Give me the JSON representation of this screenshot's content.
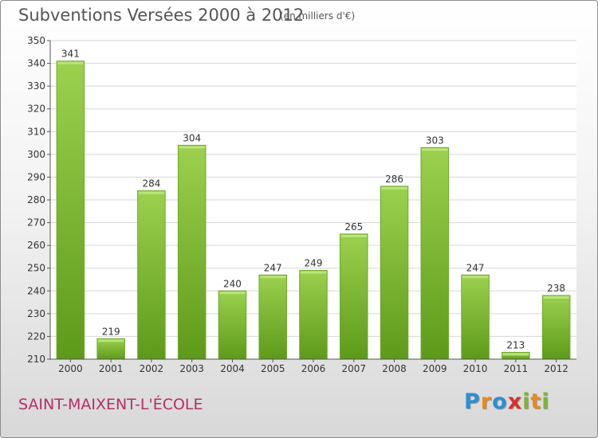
{
  "header": {
    "title": "Subventions Versées 2000 à 2012",
    "unit": "(en milliers d'€)"
  },
  "footer": {
    "place": "SAINT-MAIXENT-L'ÉCOLE",
    "logo": [
      "P",
      "r",
      "o",
      "x",
      "i",
      "t",
      "i"
    ],
    "logo_colors": [
      "#2c8fd0",
      "#e88a1a",
      "#2c8fd0",
      "#d82f2f",
      "#7db536",
      "#e88a1a",
      "#7db536"
    ]
  },
  "chart_data": {
    "type": "bar",
    "title": "Subventions Versées 2000 à 2012",
    "xlabel": "",
    "ylabel": "",
    "categories": [
      "2000",
      "2001",
      "2002",
      "2003",
      "2004",
      "2005",
      "2006",
      "2007",
      "2008",
      "2009",
      "2010",
      "2011",
      "2012"
    ],
    "values": [
      341,
      219,
      284,
      304,
      240,
      247,
      249,
      265,
      286,
      303,
      247,
      213,
      238
    ],
    "value_labels": [
      "341",
      "219",
      "284",
      "304",
      "240",
      "247",
      "249",
      "265",
      "286",
      "303",
      "247",
      "213",
      "238"
    ],
    "ylim": [
      210,
      350
    ],
    "yticks": [
      210,
      220,
      230,
      240,
      250,
      260,
      270,
      280,
      290,
      300,
      310,
      320,
      330,
      340,
      350
    ],
    "ytick_labels": [
      "210",
      "220",
      "230",
      "240",
      "250",
      "260",
      "270",
      "280",
      "290",
      "300",
      "310",
      "320",
      "330",
      "340",
      "350"
    ],
    "grid": true,
    "bar_color_top": "#9bd14e",
    "bar_color_bottom": "#5e9a1a"
  }
}
